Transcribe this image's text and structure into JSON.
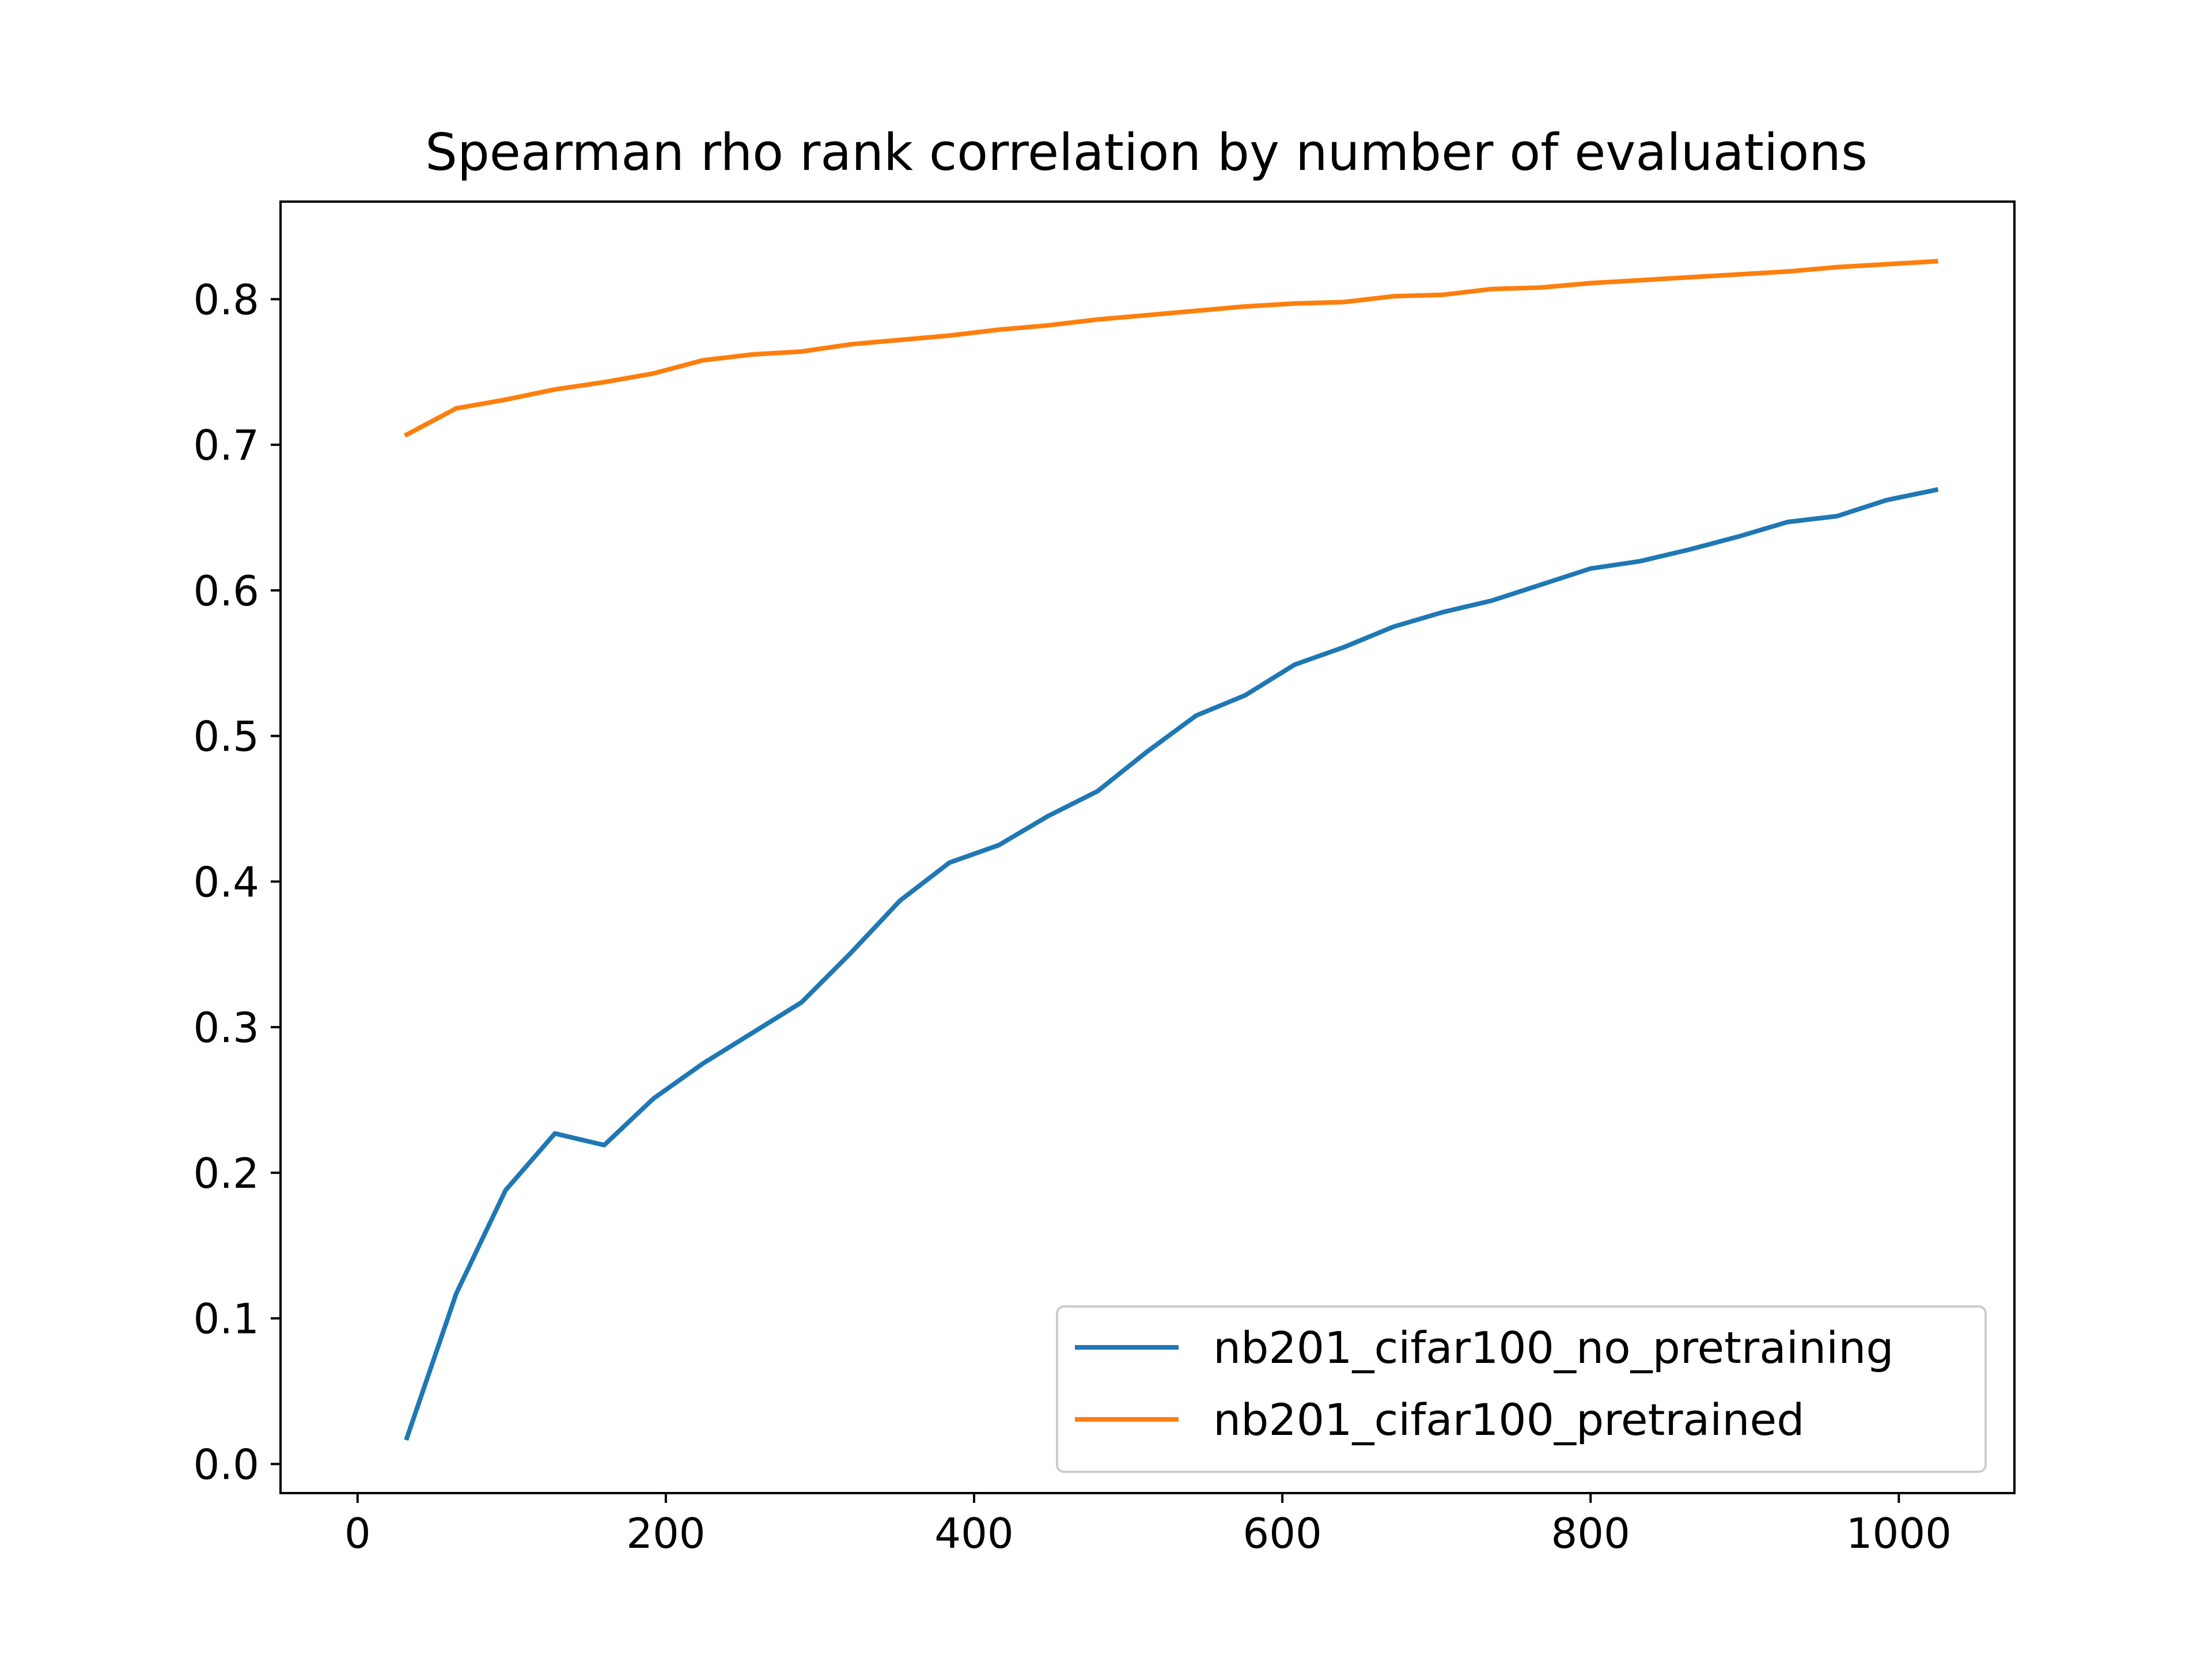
{
  "chart_data": {
    "type": "line",
    "title": "Spearman rho rank correlation by number of evaluations",
    "xlabel": "",
    "ylabel": "",
    "xlim": [
      -50,
      1075
    ],
    "ylim": [
      -0.02,
      0.867
    ],
    "x_ticks": [
      {
        "value": 0,
        "label": "0"
      },
      {
        "value": 200,
        "label": "200"
      },
      {
        "value": 400,
        "label": "400"
      },
      {
        "value": 600,
        "label": "600"
      },
      {
        "value": 800,
        "label": "800"
      },
      {
        "value": 1000,
        "label": "1000"
      }
    ],
    "y_ticks": [
      {
        "value": 0.0,
        "label": "0.0"
      },
      {
        "value": 0.1,
        "label": "0.1"
      },
      {
        "value": 0.2,
        "label": "0.2"
      },
      {
        "value": 0.3,
        "label": "0.3"
      },
      {
        "value": 0.4,
        "label": "0.4"
      },
      {
        "value": 0.5,
        "label": "0.5"
      },
      {
        "value": 0.6,
        "label": "0.6"
      },
      {
        "value": 0.7,
        "label": "0.7"
      },
      {
        "value": 0.8,
        "label": "0.8"
      }
    ],
    "grid": false,
    "legend_position": "lower-right",
    "x": [
      32,
      64,
      96,
      128,
      160,
      192,
      224,
      256,
      288,
      320,
      352,
      384,
      416,
      448,
      480,
      512,
      544,
      576,
      608,
      640,
      672,
      704,
      736,
      768,
      800,
      832,
      864,
      896,
      928,
      960,
      992,
      1024
    ],
    "series": [
      {
        "name": "nb201_cifar100_no_pretraining",
        "color": "#1f77b4",
        "values": [
          0.018,
          0.117,
          0.188,
          0.227,
          0.219,
          0.251,
          0.275,
          0.296,
          0.317,
          0.351,
          0.387,
          0.413,
          0.425,
          0.445,
          0.462,
          0.489,
          0.514,
          0.528,
          0.549,
          0.561,
          0.575,
          0.585,
          0.593,
          0.604,
          0.615,
          0.62,
          0.628,
          0.637,
          0.647,
          0.651,
          0.662,
          0.669
        ]
      },
      {
        "name": "nb201_cifar100_pretrained",
        "color": "#ff7f0e",
        "values": [
          0.707,
          0.725,
          0.731,
          0.738,
          0.743,
          0.749,
          0.758,
          0.762,
          0.764,
          0.769,
          0.772,
          0.775,
          0.779,
          0.782,
          0.786,
          0.789,
          0.792,
          0.795,
          0.797,
          0.798,
          0.802,
          0.803,
          0.807,
          0.808,
          0.811,
          0.813,
          0.815,
          0.817,
          0.819,
          0.822,
          0.824,
          0.826
        ]
      }
    ]
  }
}
